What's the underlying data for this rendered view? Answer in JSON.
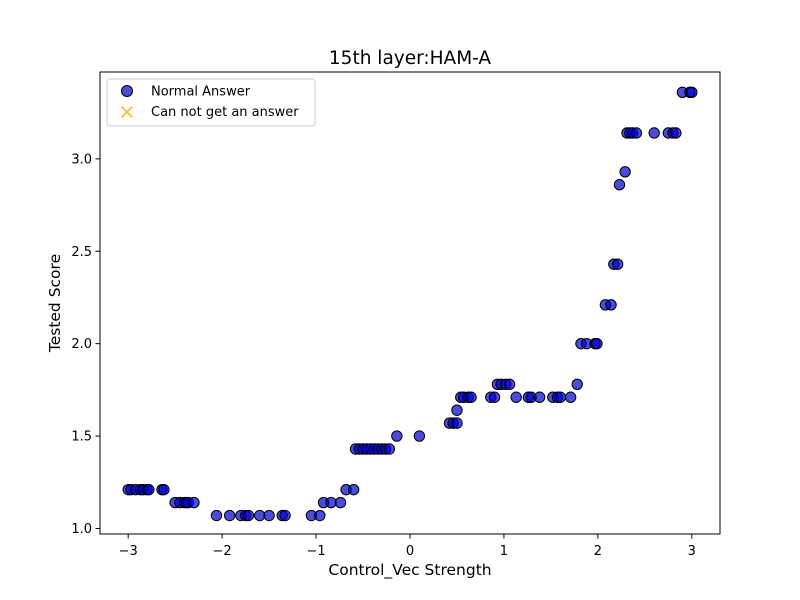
{
  "chart_data": {
    "type": "scatter",
    "title": "15th layer:HAM-A",
    "xlabel": "Control_Vec Strength",
    "ylabel": "Tested Score",
    "xlim": [
      -3.3,
      3.3
    ],
    "ylim": [
      0.97,
      3.47
    ],
    "xticks": [
      -3,
      -2,
      -1,
      0,
      1,
      2,
      3
    ],
    "xtick_labels": [
      "−3",
      "−2",
      "−1",
      "0",
      "1",
      "2",
      "3"
    ],
    "yticks": [
      1.0,
      1.5,
      2.0,
      2.5,
      3.0
    ],
    "ytick_labels": [
      "1.0",
      "1.5",
      "2.0",
      "2.5",
      "3.0"
    ],
    "grid": false,
    "legend_position": "top-left",
    "series": [
      {
        "name": "Normal Answer",
        "marker": "circle",
        "color": "#0000cc",
        "edge_color": "#000000",
        "points": [
          [
            -3.0,
            1.21
          ],
          [
            -2.97,
            1.21
          ],
          [
            -2.92,
            1.21
          ],
          [
            -2.87,
            1.21
          ],
          [
            -2.84,
            1.21
          ],
          [
            -2.8,
            1.21
          ],
          [
            -2.78,
            1.21
          ],
          [
            -2.64,
            1.21
          ],
          [
            -2.62,
            1.21
          ],
          [
            -2.5,
            1.14
          ],
          [
            -2.45,
            1.14
          ],
          [
            -2.4,
            1.14
          ],
          [
            -2.38,
            1.14
          ],
          [
            -2.36,
            1.14
          ],
          [
            -2.3,
            1.14
          ],
          [
            -2.06,
            1.07
          ],
          [
            -1.92,
            1.07
          ],
          [
            -1.8,
            1.07
          ],
          [
            -1.75,
            1.07
          ],
          [
            -1.72,
            1.07
          ],
          [
            -1.6,
            1.07
          ],
          [
            -1.5,
            1.07
          ],
          [
            -1.36,
            1.07
          ],
          [
            -1.33,
            1.07
          ],
          [
            -1.05,
            1.07
          ],
          [
            -0.96,
            1.07
          ],
          [
            -0.92,
            1.14
          ],
          [
            -0.84,
            1.14
          ],
          [
            -0.74,
            1.14
          ],
          [
            -0.68,
            1.21
          ],
          [
            -0.6,
            1.21
          ],
          [
            -0.58,
            1.43
          ],
          [
            -0.54,
            1.43
          ],
          [
            -0.5,
            1.43
          ],
          [
            -0.46,
            1.43
          ],
          [
            -0.42,
            1.43
          ],
          [
            -0.38,
            1.43
          ],
          [
            -0.34,
            1.43
          ],
          [
            -0.3,
            1.43
          ],
          [
            -0.26,
            1.43
          ],
          [
            -0.22,
            1.43
          ],
          [
            -0.14,
            1.5
          ],
          [
            0.1,
            1.5
          ],
          [
            0.42,
            1.57
          ],
          [
            0.46,
            1.57
          ],
          [
            0.5,
            1.57
          ],
          [
            0.5,
            1.64
          ],
          [
            0.54,
            1.71
          ],
          [
            0.57,
            1.71
          ],
          [
            0.62,
            1.71
          ],
          [
            0.65,
            1.71
          ],
          [
            0.86,
            1.71
          ],
          [
            0.9,
            1.71
          ],
          [
            0.93,
            1.78
          ],
          [
            0.97,
            1.78
          ],
          [
            1.02,
            1.78
          ],
          [
            1.06,
            1.78
          ],
          [
            1.13,
            1.71
          ],
          [
            1.26,
            1.71
          ],
          [
            1.29,
            1.71
          ],
          [
            1.38,
            1.71
          ],
          [
            1.52,
            1.71
          ],
          [
            1.57,
            1.71
          ],
          [
            1.6,
            1.71
          ],
          [
            1.71,
            1.71
          ],
          [
            1.78,
            1.78
          ],
          [
            1.82,
            2.0
          ],
          [
            1.88,
            2.0
          ],
          [
            1.97,
            2.0
          ],
          [
            1.99,
            2.0
          ],
          [
            2.08,
            2.21
          ],
          [
            2.14,
            2.21
          ],
          [
            2.17,
            2.43
          ],
          [
            2.21,
            2.43
          ],
          [
            2.23,
            2.86
          ],
          [
            2.29,
            2.93
          ],
          [
            2.31,
            3.14
          ],
          [
            2.34,
            3.14
          ],
          [
            2.37,
            3.14
          ],
          [
            2.41,
            3.14
          ],
          [
            2.6,
            3.14
          ],
          [
            2.75,
            3.14
          ],
          [
            2.8,
            3.14
          ],
          [
            2.83,
            3.14
          ],
          [
            2.9,
            3.36
          ],
          [
            2.98,
            3.36
          ],
          [
            3.0,
            3.36
          ]
        ]
      },
      {
        "name": "Can not get an answer",
        "marker": "x",
        "color": "#ffb732",
        "points": []
      }
    ]
  }
}
